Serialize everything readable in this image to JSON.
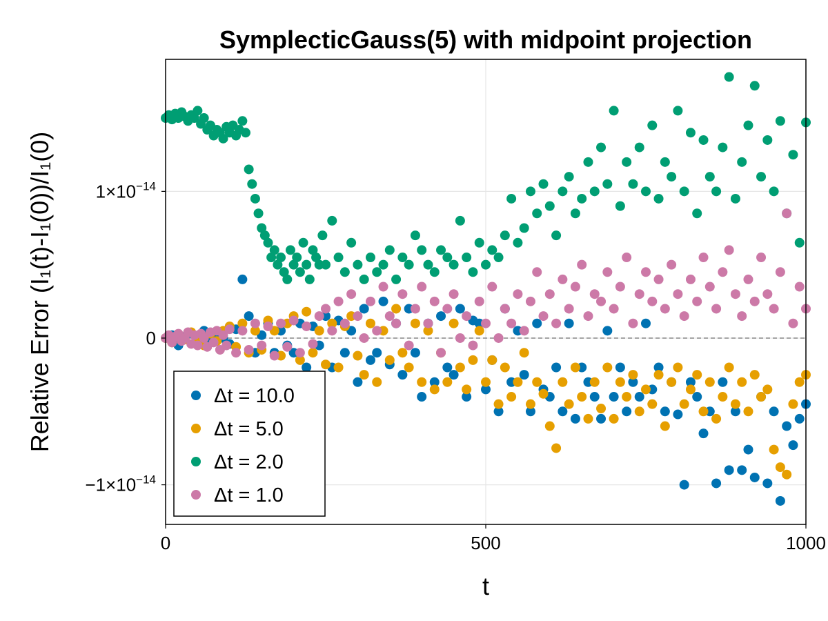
{
  "chart_data": {
    "type": "scatter",
    "title": "SymplecticGauss(5) with midpoint projection",
    "xlabel": "t",
    "ylabel": "Relative Error (I₁(t)-I₁(0))/I₁(0)",
    "xlim": [
      0,
      1000
    ],
    "ylim": [
      -1.27e-14,
      1.9e-14
    ],
    "x_ticks": [
      {
        "value": 0,
        "label": "0"
      },
      {
        "value": 500,
        "label": "500"
      },
      {
        "value": 1000,
        "label": "1000"
      }
    ],
    "y_ticks": [
      {
        "value": -1e-14,
        "base": "−1×10",
        "exp": "−14"
      },
      {
        "value": 0,
        "base": "0",
        "exp": ""
      },
      {
        "value": 1e-14,
        "base": "1×10",
        "exp": "−14"
      }
    ],
    "grid": true,
    "reference_line": {
      "y": 0,
      "style": "dashed"
    },
    "legend": {
      "position": "bottom-left"
    },
    "series": [
      {
        "name": "Δt = 10.0",
        "color": "#0072B2",
        "x": [
          0,
          10,
          20,
          30,
          40,
          50,
          60,
          70,
          80,
          90,
          100,
          110,
          120,
          130,
          140,
          150,
          160,
          170,
          180,
          190,
          200,
          210,
          220,
          230,
          240,
          250,
          260,
          270,
          280,
          290,
          300,
          310,
          320,
          330,
          340,
          350,
          360,
          370,
          380,
          390,
          400,
          410,
          420,
          430,
          440,
          450,
          460,
          470,
          480,
          490,
          500,
          510,
          520,
          530,
          540,
          550,
          560,
          570,
          580,
          590,
          600,
          610,
          620,
          630,
          640,
          650,
          660,
          670,
          680,
          690,
          700,
          710,
          720,
          730,
          740,
          750,
          760,
          770,
          780,
          790,
          800,
          810,
          820,
          830,
          840,
          850,
          860,
          870,
          880,
          890,
          900,
          910,
          920,
          930,
          940,
          950,
          960,
          970,
          980,
          990,
          1000
        ],
        "y": [
          0.0,
          2e-16,
          -5e-16,
          1e-16,
          3e-16,
          -2e-16,
          5e-16,
          -3e-16,
          2e-16,
          0.0,
          -4e-16,
          6e-16,
          4e-15,
          1.5e-15,
          -1e-15,
          2e-16,
          1e-15,
          -1e-15,
          5e-16,
          -5e-16,
          -1e-15,
          1e-15,
          -2e-15,
          8e-16,
          -5e-16,
          1.5e-15,
          -2e-15,
          1.2e-15,
          -1e-15,
          5e-16,
          -3e-15,
          2e-15,
          -1.5e-15,
          -1e-15,
          2.5e-15,
          -1.8e-15,
          1e-15,
          -2.5e-15,
          2e-15,
          -1e-15,
          -4e-15,
          1e-15,
          -3e-15,
          1.5e-15,
          -2e-15,
          -2.5e-15,
          2e-15,
          -4e-15,
          1.2e-15,
          1e-15,
          -3.5e-15,
          -1.5e-15,
          -5e-15,
          2e-15,
          -3e-15,
          5e-16,
          -2.5e-15,
          -5e-15,
          1e-15,
          -3.5e-15,
          -4e-15,
          -2e-15,
          -5e-15,
          1e-15,
          -5.5e-15,
          -2e-15,
          -3e-15,
          -4e-15,
          -5.5e-15,
          5e-16,
          -4e-15,
          -2e-15,
          -5e-15,
          -3e-15,
          -4e-15,
          1e-15,
          -3.5e-15,
          -2e-15,
          -5e-15,
          -3e-15,
          -5.2e-15,
          -1e-14,
          -3e-15,
          -4e-15,
          -6.5e-15,
          -5e-15,
          -9.9e-15,
          -3e-15,
          -9e-15,
          -5e-15,
          -9e-15,
          -7.6e-15,
          -9.5e-15,
          -4e-15,
          -9.9e-15,
          -5e-15,
          -1.11e-14,
          -6e-15,
          -7.3e-15,
          -5.5e-15,
          -4.5e-15
        ]
      },
      {
        "name": "Δt = 5.0",
        "color": "#E69F00",
        "x": [
          0,
          10,
          20,
          30,
          40,
          50,
          60,
          70,
          80,
          90,
          100,
          110,
          120,
          130,
          140,
          150,
          160,
          170,
          180,
          190,
          200,
          210,
          220,
          230,
          240,
          250,
          260,
          270,
          280,
          290,
          300,
          310,
          320,
          330,
          340,
          350,
          360,
          370,
          380,
          390,
          400,
          410,
          420,
          430,
          440,
          450,
          460,
          470,
          480,
          490,
          500,
          510,
          520,
          530,
          540,
          550,
          560,
          570,
          580,
          590,
          600,
          610,
          620,
          630,
          640,
          650,
          660,
          670,
          680,
          690,
          700,
          710,
          720,
          730,
          740,
          750,
          760,
          770,
          780,
          790,
          800,
          810,
          820,
          830,
          840,
          850,
          860,
          870,
          880,
          890,
          900,
          910,
          920,
          930,
          940,
          950,
          960,
          970,
          980,
          990,
          1000
        ],
        "y": [
          0.0,
          -3e-16,
          2e-16,
          -1e-16,
          4e-16,
          0.0,
          -5e-16,
          3e-16,
          -2e-16,
          5e-16,
          8e-16,
          -6e-16,
          1e-15,
          -1e-15,
          5e-16,
          -8e-16,
          1.2e-15,
          5e-16,
          -1.2e-15,
          1e-15,
          1.5e-15,
          -1.5e-15,
          1.8e-15,
          -1e-15,
          5e-16,
          -1.8e-15,
          1e-15,
          -2e-15,
          8e-16,
          1.5e-15,
          -1.2e-15,
          -2.5e-15,
          1e-15,
          -3e-15,
          5e-16,
          -1.5e-15,
          2e-15,
          -1e-15,
          -2e-15,
          1e-15,
          -3e-15,
          5e-16,
          -3.5e-15,
          -1e-15,
          -3e-15,
          1e-15,
          -2e-15,
          -3.5e-15,
          -1.5e-15,
          5e-16,
          -3e-15,
          -1.5e-15,
          -4.5e-15,
          -2e-15,
          -4e-15,
          -3e-15,
          -1e-15,
          -4.5e-15,
          -3e-15,
          -3.8e-15,
          -6e-15,
          -7.5e-15,
          -3e-15,
          -4.5e-15,
          -2e-15,
          -4e-15,
          -5.5e-15,
          -3e-15,
          -4.8e-15,
          -2e-15,
          -5.5e-15,
          -3e-15,
          -4e-15,
          -2.5e-15,
          -5e-15,
          -3.5e-15,
          -4.5e-15,
          -2.5e-15,
          -6e-15,
          -3e-15,
          -2e-15,
          -4.5e-15,
          -3.5e-15,
          -2.5e-15,
          -5e-15,
          -3e-15,
          -5.5e-15,
          -4e-15,
          -2e-15,
          -4.5e-15,
          -3e-15,
          -5e-15,
          -2.5e-15,
          -4e-15,
          -3.5e-15,
          -7.6e-15,
          -8.8e-15,
          -9.3e-15,
          -4.5e-15,
          -3e-15,
          -2.5e-15
        ]
      },
      {
        "name": "Δt = 2.0",
        "color": "#009E73",
        "x": [
          0,
          5,
          10,
          15,
          20,
          25,
          30,
          35,
          40,
          45,
          50,
          55,
          60,
          65,
          70,
          75,
          80,
          85,
          90,
          95,
          100,
          105,
          110,
          115,
          120,
          125,
          130,
          135,
          140,
          145,
          150,
          155,
          160,
          165,
          170,
          175,
          180,
          185,
          190,
          195,
          200,
          205,
          210,
          215,
          220,
          225,
          230,
          235,
          240,
          245,
          250,
          260,
          270,
          280,
          290,
          300,
          310,
          320,
          330,
          340,
          350,
          360,
          370,
          380,
          390,
          400,
          410,
          420,
          430,
          440,
          450,
          460,
          470,
          480,
          490,
          500,
          510,
          520,
          530,
          540,
          550,
          560,
          570,
          580,
          590,
          600,
          610,
          620,
          630,
          640,
          650,
          660,
          670,
          680,
          690,
          700,
          710,
          720,
          730,
          740,
          750,
          760,
          770,
          780,
          790,
          800,
          810,
          820,
          830,
          840,
          850,
          860,
          870,
          880,
          890,
          900,
          910,
          920,
          930,
          940,
          950,
          960,
          970,
          980,
          990,
          1000
        ],
        "y": [
          1.5e-14,
          1.52e-14,
          1.49e-14,
          1.53e-14,
          1.5e-14,
          1.54e-14,
          1.51e-14,
          1.48e-14,
          1.52e-14,
          1.5e-14,
          1.55e-14,
          1.46e-14,
          1.5e-14,
          1.42e-14,
          1.45e-14,
          1.38e-14,
          1.42e-14,
          1.4e-14,
          1.36e-14,
          1.44e-14,
          1.4e-14,
          1.45e-14,
          1.38e-14,
          1.42e-14,
          1.48e-14,
          1.4e-14,
          1.15e-14,
          1.05e-14,
          9.5e-15,
          8.5e-15,
          7.5e-15,
          7e-15,
          6.5e-15,
          5.5e-15,
          6e-15,
          5e-15,
          5.5e-15,
          4.5e-15,
          4e-15,
          6e-15,
          5e-15,
          5.5e-15,
          4.5e-15,
          6.5e-15,
          5e-15,
          4e-15,
          6e-15,
          5.5e-15,
          5e-15,
          7e-15,
          5e-15,
          8e-15,
          5.5e-15,
          4.5e-15,
          6.5e-15,
          5e-15,
          4e-15,
          5.5e-15,
          4.5e-15,
          5e-15,
          6e-15,
          4e-15,
          5.5e-15,
          5e-15,
          7e-15,
          6e-15,
          5e-15,
          4.5e-15,
          6e-15,
          5.5e-15,
          5e-15,
          8e-15,
          5.5e-15,
          4.5e-15,
          6.5e-15,
          5e-15,
          6e-15,
          5.5e-15,
          7e-15,
          9.5e-15,
          6.5e-15,
          7.5e-15,
          1e-14,
          8.5e-15,
          1.05e-14,
          9e-15,
          7e-15,
          1e-14,
          1.1e-14,
          8.5e-15,
          9.5e-15,
          1.2e-14,
          1e-14,
          1.3e-14,
          1.05e-14,
          1.55e-14,
          9e-15,
          1.2e-14,
          1.05e-14,
          1.3e-14,
          1e-14,
          1.45e-14,
          9.5e-15,
          1.2e-14,
          1.1e-14,
          1.55e-14,
          1e-14,
          1.4e-14,
          8.5e-15,
          1.35e-14,
          1.1e-14,
          1e-14,
          1.3e-14,
          1.78e-14,
          9.5e-15,
          1.2e-14,
          1.45e-14,
          1.72e-14,
          1.1e-14,
          1.35e-14,
          1e-14,
          1.48e-14,
          8.5e-15,
          1.25e-14,
          6.5e-15,
          1.47e-14
        ]
      },
      {
        "name": "Δt = 1.0",
        "color": "#CC79A7",
        "x": [
          0,
          5,
          10,
          15,
          20,
          25,
          30,
          35,
          40,
          45,
          50,
          55,
          60,
          65,
          70,
          75,
          80,
          85,
          90,
          95,
          100,
          110,
          120,
          130,
          140,
          150,
          160,
          170,
          180,
          190,
          200,
          210,
          220,
          230,
          240,
          250,
          260,
          270,
          280,
          290,
          300,
          310,
          320,
          330,
          340,
          350,
          360,
          370,
          380,
          390,
          400,
          410,
          420,
          430,
          440,
          450,
          460,
          470,
          480,
          490,
          500,
          510,
          520,
          530,
          540,
          550,
          560,
          570,
          580,
          590,
          600,
          610,
          620,
          630,
          640,
          650,
          660,
          670,
          680,
          690,
          700,
          710,
          720,
          730,
          740,
          750,
          760,
          770,
          780,
          790,
          800,
          810,
          820,
          830,
          840,
          850,
          860,
          870,
          880,
          890,
          900,
          910,
          920,
          930,
          940,
          950,
          960,
          970,
          980,
          990,
          1000
        ],
        "y": [
          0.0,
          2e-16,
          -3e-16,
          1e-16,
          3e-16,
          -2e-16,
          0.0,
          4e-16,
          -4e-16,
          2e-16,
          -5e-16,
          3e-16,
          0.0,
          -6e-16,
          4e-16,
          -3e-16,
          5e-16,
          -8e-16,
          2e-16,
          -5e-16,
          6e-16,
          -1e-15,
          5e-16,
          -8e-16,
          1e-15,
          -5e-16,
          8e-16,
          -1.2e-15,
          1e-15,
          -6e-16,
          1.2e-15,
          -1e-15,
          8e-16,
          -4e-16,
          1.5e-15,
          2e-15,
          5e-16,
          2.5e-15,
          1e-15,
          3e-15,
          1.5e-15,
          0.0,
          2.5e-15,
          5e-16,
          3.5e-15,
          1.5e-15,
          1e-15,
          3e-15,
          -5e-16,
          2e-15,
          3.5e-15,
          1e-15,
          2.5e-15,
          -1e-15,
          2e-15,
          3e-15,
          0.0,
          1.5e-15,
          -5e-16,
          2.5e-15,
          1e-15,
          3.5e-15,
          0.0,
          2e-15,
          1e-15,
          3e-15,
          5e-16,
          2.5e-15,
          4.5e-15,
          1.5e-15,
          3e-15,
          1e-15,
          4e-15,
          2e-15,
          3.5e-15,
          5e-15,
          1.5e-15,
          3e-15,
          2.5e-15,
          4.5e-15,
          2e-15,
          3.5e-15,
          5.5e-15,
          1e-15,
          3e-15,
          4.5e-15,
          2.5e-15,
          4e-15,
          2e-15,
          5e-15,
          3e-15,
          1.5e-15,
          4e-15,
          2.5e-15,
          5.5e-15,
          3.5e-15,
          2e-15,
          4.5e-15,
          6e-15,
          3e-15,
          1.5e-15,
          4e-15,
          2.5e-15,
          5.5e-15,
          3e-15,
          2e-15,
          4.5e-15,
          8.5e-15,
          1e-15,
          3.5e-15,
          2e-15
        ]
      }
    ]
  }
}
